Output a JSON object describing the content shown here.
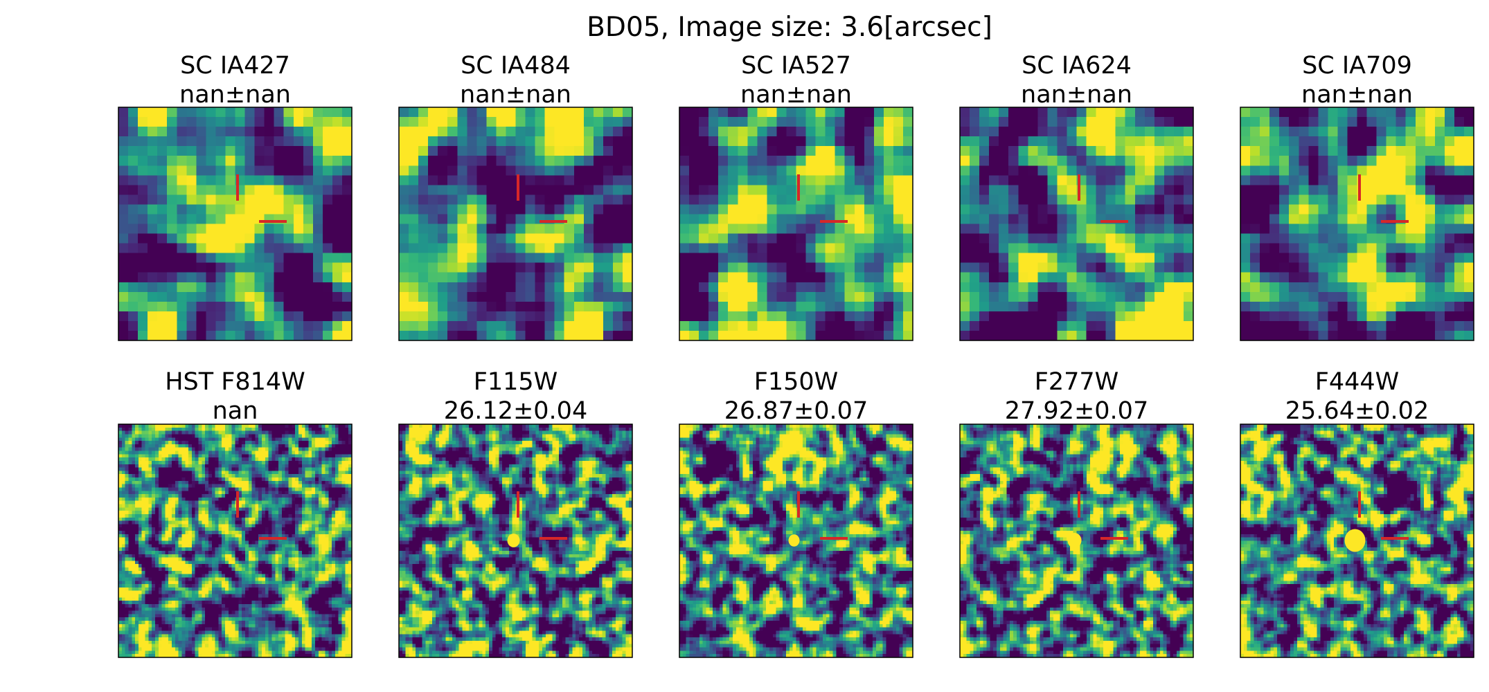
{
  "title": "BD05,  Image size: 3.6[arcsec]",
  "panels": [
    {
      "name": "SC IA427",
      "value": "nan±nan"
    },
    {
      "name": "SC IA484",
      "value": "nan±nan"
    },
    {
      "name": "SC IA527",
      "value": "nan±nan"
    },
    {
      "name": "SC IA624",
      "value": "nan±nan"
    },
    {
      "name": "SC IA709",
      "value": "nan±nan"
    },
    {
      "name": "HST F814W",
      "value": "nan"
    },
    {
      "name": "F115W",
      "value": "26.12±0.04"
    },
    {
      "name": "F150W",
      "value": "26.87±0.07"
    },
    {
      "name": "F277W",
      "value": "27.92±0.07"
    },
    {
      "name": "F444W",
      "value": "25.64±0.02"
    }
  ]
}
